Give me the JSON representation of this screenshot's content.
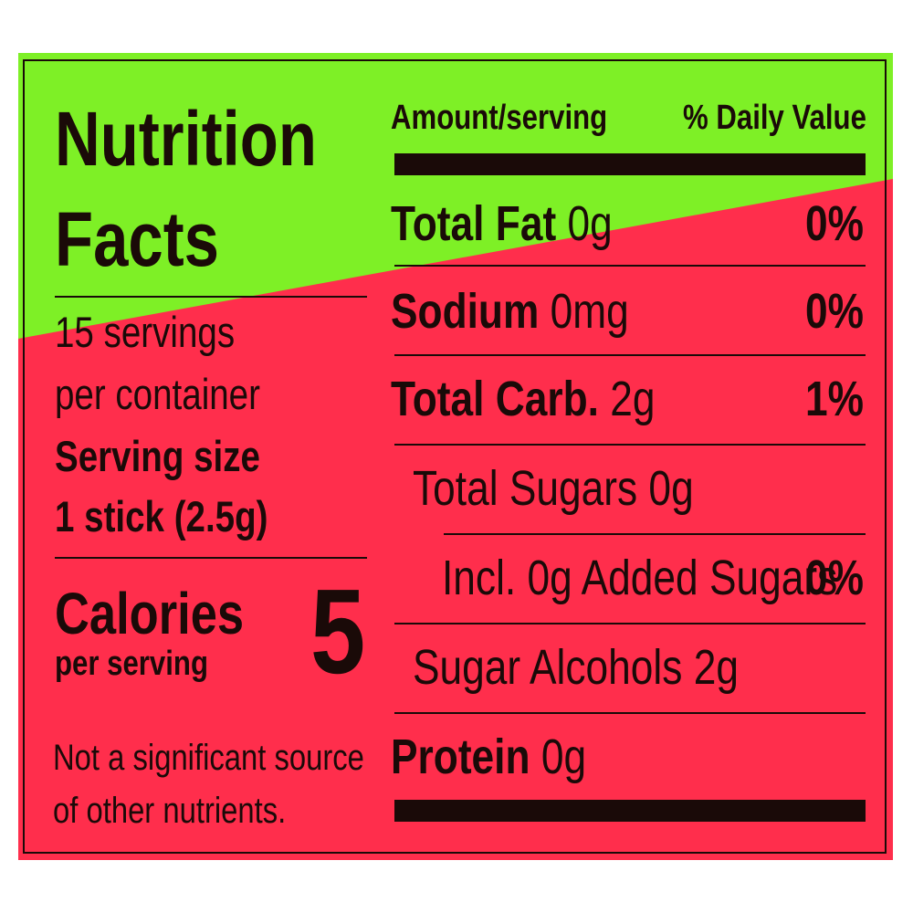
{
  "colors": {
    "top_band": "#7ef026",
    "main": "#ff2e4c",
    "ink": "#1a0a08"
  },
  "title_line1": "Nutrition",
  "title_line2": "Facts",
  "servings_line1": "15 servings",
  "servings_line2": "per container",
  "serving_size_label": "Serving size",
  "serving_size_value": "1 stick (2.5g)",
  "calories_label": "Calories",
  "calories_sublabel": "per serving",
  "calories_value": "5",
  "footnote_line1": "Not a significant source",
  "footnote_line2": "of other nutrients.",
  "header_amount": "Amount/serving",
  "header_dv": "% Daily Value",
  "rows": [
    {
      "label": "Total Fat",
      "amount": "0g",
      "dv": "0%"
    },
    {
      "label": "Sodium",
      "amount": "0mg",
      "dv": "0%"
    },
    {
      "label": "Total Carb.",
      "amount": "2g",
      "dv": "1%"
    },
    {
      "label": "Total Sugars 0g"
    },
    {
      "label": "Incl. 0g Added Sugars",
      "dv": "0%"
    },
    {
      "label": "Sugar Alcohols 2g"
    },
    {
      "label": "Protein",
      "amount": "0g"
    }
  ]
}
